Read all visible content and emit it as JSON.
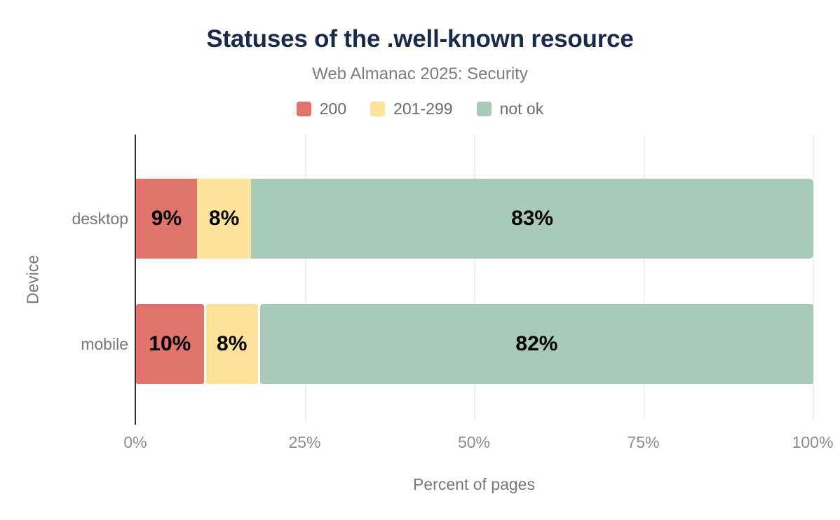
{
  "title": "Statuses of the .well-known resource",
  "subtitle": "Web Almanac 2025: Security",
  "chart_data": {
    "type": "bar",
    "orientation": "horizontal",
    "stacked": true,
    "categories": [
      "desktop",
      "mobile"
    ],
    "series": [
      {
        "name": "200",
        "color": "#e0736b",
        "values": [
          9,
          10
        ]
      },
      {
        "name": "201-299",
        "color": "#fce399",
        "values": [
          8,
          8
        ]
      },
      {
        "name": "not ok",
        "color": "#a8cab8",
        "values": [
          83,
          82
        ]
      }
    ],
    "data_labels": [
      [
        "9%",
        "8%",
        "83%"
      ],
      [
        "10%",
        "8%",
        "82%"
      ]
    ],
    "value_suffix": "%",
    "xlabel": "Percent of pages",
    "ylabel": "Device",
    "xlim": [
      0,
      100
    ],
    "xticks": {
      "values": [
        0,
        25,
        50,
        75,
        100
      ],
      "labels": [
        "0%",
        "25%",
        "50%",
        "75%",
        "100%"
      ]
    },
    "grid": "vertical",
    "legend_position": "top"
  },
  "colors": {
    "background": "#ffffff",
    "title_text": "#1a2b49",
    "subtitle_text": "#7c7c7c",
    "axis_text": "#75797c",
    "tick_text": "#8a8d8f",
    "bar_label_text": "#000000",
    "gridline": "#f1f1f1",
    "axis_line": "#2f2f2f"
  }
}
